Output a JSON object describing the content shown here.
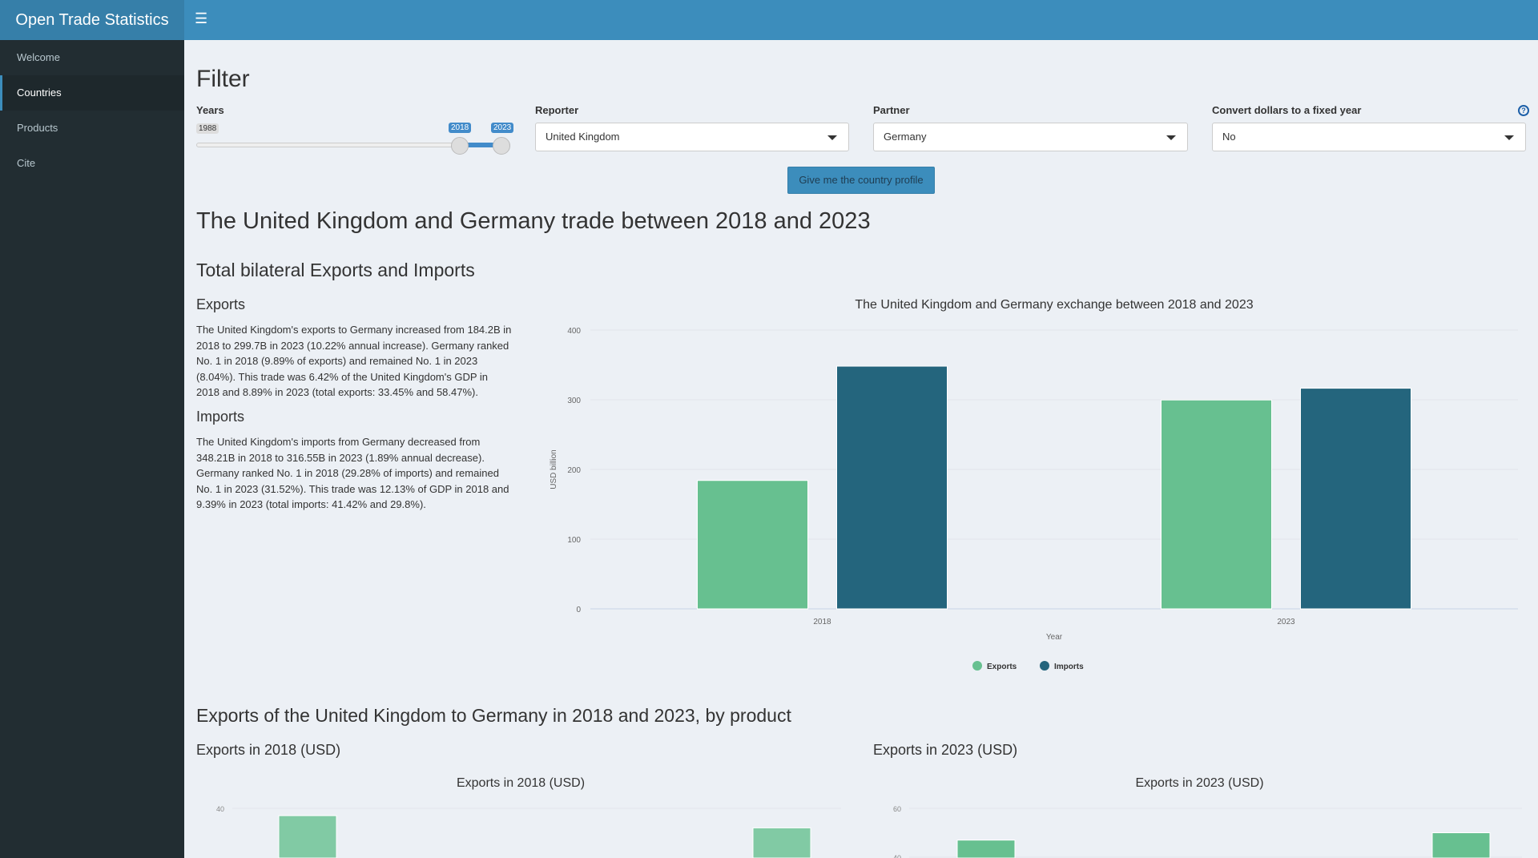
{
  "app": {
    "title": "Open Trade Statistics",
    "menu_icon": "hamburger-icon"
  },
  "sidebar": {
    "items": [
      {
        "label": "Welcome",
        "active": false
      },
      {
        "label": "Countries",
        "active": true
      },
      {
        "label": "Products",
        "active": false
      },
      {
        "label": "Cite",
        "active": false
      }
    ]
  },
  "filter": {
    "title": "Filter",
    "years": {
      "label": "Years",
      "min": "1988",
      "from": "2018",
      "to": "2023"
    },
    "reporter": {
      "label": "Reporter",
      "value": "United Kingdom"
    },
    "partner": {
      "label": "Partner",
      "value": "Germany"
    },
    "convert": {
      "label": "Convert dollars to a fixed year",
      "value": "No",
      "help_icon": "question-circle-icon"
    },
    "button": "Give me the country profile"
  },
  "main": {
    "title": "The United Kingdom and Germany trade between 2018 and 2023",
    "bilateral_title": "Total bilateral Exports and Imports",
    "exports_heading": "Exports",
    "exports_text": "The United Kingdom's exports to Germany increased from 184.2B in 2018 to 299.7B in 2023 (10.22% annual increase). Germany ranked No. 1 in 2018 (9.89% of exports) and remained No. 1 in 2023 (8.04%). This trade was 6.42% of the United Kingdom's GDP in 2018 and 8.89% in 2023 (total exports: 33.45% and 58.47%).",
    "imports_heading": "Imports",
    "imports_text": "The United Kingdom's imports from Germany decreased from 348.21B in 2018 to 316.55B in 2023 (1.89% annual decrease). Germany ranked No. 1 in 2018 (29.28% of imports) and remained No. 1 in 2023 (31.52%). This trade was 12.13% of GDP in 2018 and 9.39% in 2023 (total imports: 41.42% and 29.8%).",
    "products_title": "Exports of the United Kingdom to Germany in 2018 and 2023, by product",
    "exports_2018_heading": "Exports in 2018 (USD)",
    "exports_2023_heading": "Exports in 2023 (USD)"
  },
  "colors": {
    "exports": "#67c090",
    "imports": "#24657d",
    "header": "#3c8dbc",
    "sidebar": "#222d32"
  },
  "chart_data": [
    {
      "type": "bar",
      "title": "The United Kingdom and Germany exchange between 2018 and 2023",
      "xlabel": "Year",
      "ylabel": "USD billion",
      "categories": [
        "2018",
        "2023"
      ],
      "ylim": [
        0,
        400
      ],
      "yticks": [
        0,
        100,
        200,
        300,
        400
      ],
      "grid": true,
      "legend": "bottom",
      "series": [
        {
          "name": "Exports",
          "values": [
            184.2,
            299.7
          ]
        },
        {
          "name": "Imports",
          "values": [
            348.21,
            316.55
          ]
        }
      ]
    },
    {
      "type": "bar",
      "title": "Exports in 2018 (USD)",
      "visible_ticks": [
        40
      ],
      "values": [
        37,
        32
      ]
    },
    {
      "type": "bar",
      "title": "Exports in 2023 (USD)",
      "visible_ticks": [
        60,
        40
      ],
      "values": [
        47,
        50
      ]
    }
  ]
}
